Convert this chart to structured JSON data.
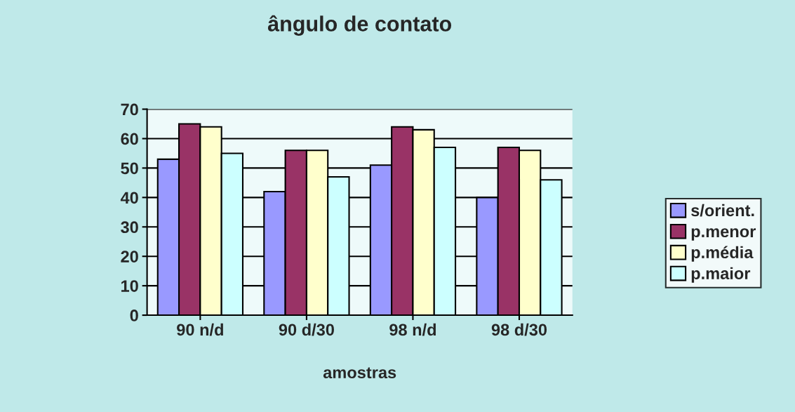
{
  "chart_data": {
    "type": "bar",
    "title": "ângulo de contato",
    "xlabel": "amostras",
    "categories": [
      "90 n/d",
      "90 d/30",
      "98 n/d",
      "98 d/30"
    ],
    "series": [
      {
        "name": "s/orient.",
        "color": "#9999ff",
        "values": [
          53,
          42,
          51,
          40
        ]
      },
      {
        "name": "p.menor",
        "color": "#993366",
        "values": [
          65,
          56,
          64,
          57
        ]
      },
      {
        "name": "p.média",
        "color": "#ffffcc",
        "values": [
          64,
          56,
          63,
          56
        ]
      },
      {
        "name": "p.maior",
        "color": "#ccffff",
        "values": [
          55,
          47,
          57,
          46
        ]
      }
    ],
    "ylim": [
      0,
      70
    ],
    "yticks": [
      0,
      10,
      20,
      30,
      40,
      50,
      60,
      70
    ],
    "grid": "y",
    "legend": "right"
  }
}
